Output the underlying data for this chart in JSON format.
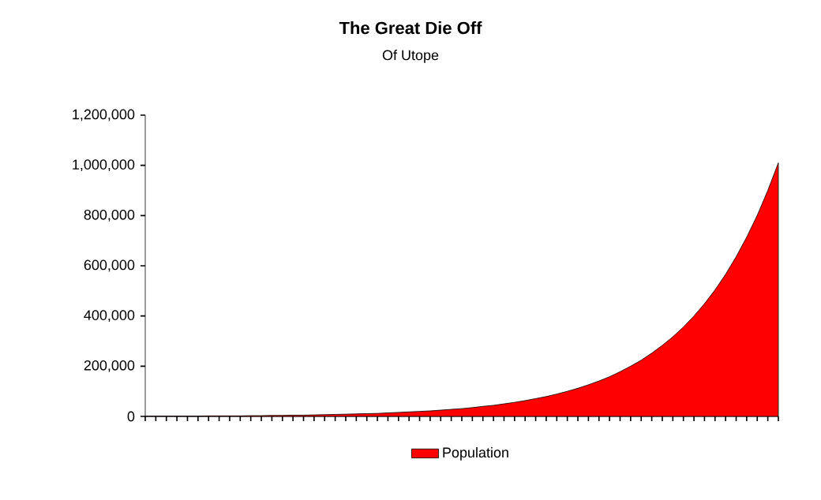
{
  "chart_data": {
    "type": "area",
    "title": "The Great Die Off",
    "subtitle": "Of Utope",
    "categories": [
      null,
      null,
      null,
      null,
      null,
      null,
      null,
      null,
      null,
      null,
      null,
      null,
      null,
      null,
      null,
      null,
      null,
      null,
      null,
      null,
      null,
      null,
      null,
      null,
      null,
      null,
      null,
      null,
      null,
      null,
      null,
      null,
      null,
      null,
      null,
      null,
      null,
      null,
      null,
      null,
      null,
      null,
      null,
      null,
      null,
      null,
      null,
      null,
      null,
      null,
      null,
      null,
      null,
      null,
      null,
      null,
      null,
      null,
      null,
      null,
      null
    ],
    "series": [
      {
        "name": "Population",
        "color": "#ff0000",
        "values": [
          1000,
          1000,
          1000,
          1000,
          1000,
          1000,
          2000,
          2000,
          2000,
          2000,
          3000,
          3000,
          4000,
          4000,
          5000,
          5000,
          6000,
          7000,
          8000,
          9000,
          10000,
          11000,
          12000,
          14000,
          16000,
          18000,
          20000,
          22000,
          25000,
          28000,
          31000,
          35000,
          40000,
          44000,
          50000,
          56000,
          63000,
          71000,
          79000,
          89000,
          100000,
          112000,
          126000,
          141000,
          158000,
          178000,
          200000,
          224000,
          252000,
          283000,
          317000,
          356000,
          400000,
          449000,
          504000,
          566000,
          636000,
          714000,
          801000,
          900000,
          1010000
        ]
      }
    ],
    "ylim": [
      0,
      1200000
    ],
    "yticks": [
      {
        "value": 0,
        "label": "0"
      },
      {
        "value": 200000,
        "label": "200,000"
      },
      {
        "value": 400000,
        "label": "400,000"
      },
      {
        "value": 600000,
        "label": "600,000"
      },
      {
        "value": 800000,
        "label": "800,000"
      },
      {
        "value": 1000000,
        "label": "1,000,000"
      },
      {
        "value": 1200000,
        "label": "1,200,000"
      }
    ],
    "tick_labels": "y",
    "legend": "bottom"
  }
}
